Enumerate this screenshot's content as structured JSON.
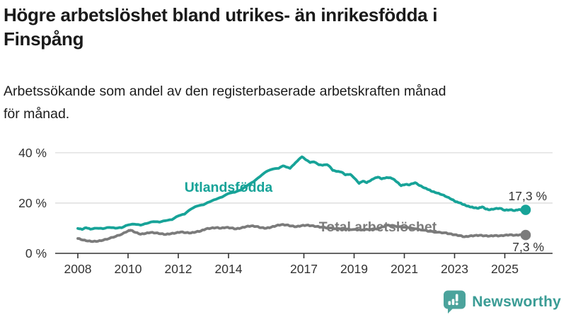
{
  "header": {
    "title_lines": [
      "Högre arbetslöshet bland utrikes- än inrikesfödda i",
      "Finspång"
    ],
    "subtitle_lines": [
      "Arbetssökande som andel av den registerbaserade arbetskraften månad",
      "för månad."
    ]
  },
  "footer": {
    "brand": "Newsworthy"
  },
  "colors": {
    "foreign_born": "#17a398",
    "total": "#7b7b7b",
    "axis_text": "#333333",
    "gridline": "#dcdcdc",
    "axis_line": "#333333",
    "brand_teal": "#3a9c95",
    "brand_icon": "#4ba39c"
  },
  "chart_data": {
    "type": "line",
    "title": "Högre arbetslöshet bland utrikes- än inrikesfödda i Finspång",
    "subtitle": "Arbetssökande som andel av den registerbaserade arbetskraften månad för månad.",
    "unit": "%",
    "xlim": [
      2007.9,
      2026.2
    ],
    "ylim": [
      0,
      42
    ],
    "grid": "horizontal",
    "x_ticks": [
      2008,
      2010,
      2012,
      2014,
      2017,
      2019,
      2021,
      2023,
      2025
    ],
    "x_tick_labels": [
      "2008",
      "2010",
      "2012",
      "2014",
      "2017",
      "2019",
      "2021",
      "2023",
      "2025"
    ],
    "y_ticks": [
      {
        "value": 0,
        "label": "0 %"
      },
      {
        "value": 20,
        "label": "20 %"
      },
      {
        "value": 40,
        "label": "40 %"
      }
    ],
    "series": [
      {
        "name": "Utlandsfödda",
        "color": "#17a398",
        "end_value": 17.3,
        "end_label": "17,3 %",
        "points": [
          [
            2008.0,
            9.9
          ],
          [
            2008.17,
            9.5
          ],
          [
            2008.33,
            10.2
          ],
          [
            2008.5,
            9.6
          ],
          [
            2008.75,
            10.0
          ],
          [
            2009.0,
            9.8
          ],
          [
            2009.25,
            10.3
          ],
          [
            2009.5,
            10.0
          ],
          [
            2009.75,
            10.2
          ],
          [
            2010.0,
            11.3
          ],
          [
            2010.25,
            11.6
          ],
          [
            2010.5,
            11.2
          ],
          [
            2010.75,
            11.9
          ],
          [
            2011.0,
            12.6
          ],
          [
            2011.25,
            12.4
          ],
          [
            2011.5,
            13.0
          ],
          [
            2011.75,
            13.4
          ],
          [
            2012.0,
            14.9
          ],
          [
            2012.25,
            15.6
          ],
          [
            2012.5,
            17.6
          ],
          [
            2012.75,
            18.8
          ],
          [
            2013.0,
            19.3
          ],
          [
            2013.25,
            20.5
          ],
          [
            2013.5,
            21.5
          ],
          [
            2013.75,
            22.4
          ],
          [
            2014.0,
            23.8
          ],
          [
            2014.25,
            24.3
          ],
          [
            2014.5,
            25.2
          ],
          [
            2014.75,
            27.0
          ],
          [
            2015.0,
            28.5
          ],
          [
            2015.25,
            30.5
          ],
          [
            2015.5,
            32.5
          ],
          [
            2015.75,
            33.5
          ],
          [
            2016.0,
            33.8
          ],
          [
            2016.17,
            34.8
          ],
          [
            2016.3,
            34.3
          ],
          [
            2016.45,
            33.8
          ],
          [
            2016.6,
            35.3
          ],
          [
            2016.75,
            36.8
          ],
          [
            2016.92,
            38.4
          ],
          [
            2017.08,
            37.2
          ],
          [
            2017.25,
            36.1
          ],
          [
            2017.4,
            36.4
          ],
          [
            2017.6,
            35.2
          ],
          [
            2017.75,
            35.0
          ],
          [
            2017.9,
            35.3
          ],
          [
            2018.0,
            34.8
          ],
          [
            2018.15,
            33.0
          ],
          [
            2018.3,
            32.6
          ],
          [
            2018.5,
            32.3
          ],
          [
            2018.65,
            31.2
          ],
          [
            2018.85,
            31.4
          ],
          [
            2019.0,
            30.0
          ],
          [
            2019.2,
            27.8
          ],
          [
            2019.35,
            28.7
          ],
          [
            2019.5,
            28.1
          ],
          [
            2019.65,
            28.9
          ],
          [
            2019.8,
            29.8
          ],
          [
            2019.95,
            30.3
          ],
          [
            2020.1,
            29.6
          ],
          [
            2020.25,
            30.0
          ],
          [
            2020.4,
            30.1
          ],
          [
            2020.55,
            29.6
          ],
          [
            2020.7,
            28.4
          ],
          [
            2020.87,
            26.9
          ],
          [
            2021.05,
            27.4
          ],
          [
            2021.2,
            27.2
          ],
          [
            2021.43,
            28.1
          ],
          [
            2021.6,
            27.0
          ],
          [
            2021.8,
            26.0
          ],
          [
            2021.97,
            25.3
          ],
          [
            2022.1,
            24.6
          ],
          [
            2022.3,
            24.0
          ],
          [
            2022.5,
            23.3
          ],
          [
            2022.7,
            22.4
          ],
          [
            2022.9,
            21.4
          ],
          [
            2023.05,
            20.5
          ],
          [
            2023.2,
            20.1
          ],
          [
            2023.35,
            19.4
          ],
          [
            2023.5,
            18.8
          ],
          [
            2023.65,
            18.4
          ],
          [
            2023.8,
            18.1
          ],
          [
            2023.95,
            17.9
          ],
          [
            2024.1,
            18.5
          ],
          [
            2024.25,
            17.6
          ],
          [
            2024.4,
            17.3
          ],
          [
            2024.6,
            17.7
          ],
          [
            2024.8,
            17.9
          ],
          [
            2025.0,
            17.1
          ],
          [
            2025.2,
            17.3
          ],
          [
            2025.4,
            17.0
          ],
          [
            2025.55,
            17.4
          ],
          [
            2025.7,
            17.1
          ],
          [
            2025.83,
            17.3
          ]
        ]
      },
      {
        "name": "Total arbetslöshet",
        "color": "#7b7b7b",
        "end_value": 7.3,
        "end_label": "7,3 %",
        "points": [
          [
            2008.0,
            5.9
          ],
          [
            2008.2,
            5.3
          ],
          [
            2008.4,
            4.9
          ],
          [
            2008.6,
            4.7
          ],
          [
            2008.8,
            4.8
          ],
          [
            2009.0,
            5.2
          ],
          [
            2009.25,
            5.9
          ],
          [
            2009.5,
            6.7
          ],
          [
            2009.75,
            7.6
          ],
          [
            2010.0,
            8.9
          ],
          [
            2010.1,
            9.2
          ],
          [
            2010.3,
            8.3
          ],
          [
            2010.5,
            7.6
          ],
          [
            2010.7,
            7.9
          ],
          [
            2010.9,
            8.3
          ],
          [
            2011.1,
            8.1
          ],
          [
            2011.3,
            7.8
          ],
          [
            2011.5,
            7.5
          ],
          [
            2011.7,
            7.8
          ],
          [
            2011.9,
            8.1
          ],
          [
            2012.1,
            8.5
          ],
          [
            2012.3,
            8.2
          ],
          [
            2012.5,
            8.1
          ],
          [
            2012.7,
            8.5
          ],
          [
            2012.9,
            8.9
          ],
          [
            2013.1,
            9.7
          ],
          [
            2013.3,
            10.0
          ],
          [
            2013.5,
            10.2
          ],
          [
            2013.7,
            10.0
          ],
          [
            2013.9,
            10.3
          ],
          [
            2014.1,
            10.1
          ],
          [
            2014.3,
            9.7
          ],
          [
            2014.5,
            10.1
          ],
          [
            2014.7,
            10.6
          ],
          [
            2014.9,
            10.9
          ],
          [
            2015.1,
            10.7
          ],
          [
            2015.3,
            10.2
          ],
          [
            2015.5,
            10.0
          ],
          [
            2015.7,
            10.4
          ],
          [
            2015.9,
            11.0
          ],
          [
            2016.1,
            11.4
          ],
          [
            2016.3,
            11.3
          ],
          [
            2016.5,
            10.9
          ],
          [
            2016.7,
            10.6
          ],
          [
            2016.9,
            11.0
          ],
          [
            2017.1,
            11.2
          ],
          [
            2017.3,
            11.0
          ],
          [
            2017.5,
            10.7
          ],
          [
            2017.7,
            10.4
          ],
          [
            2018.0,
            10.1
          ],
          [
            2018.3,
            9.8
          ],
          [
            2018.6,
            9.6
          ],
          [
            2019.0,
            9.5
          ],
          [
            2019.4,
            9.4
          ],
          [
            2019.7,
            9.6
          ],
          [
            2020.0,
            9.9
          ],
          [
            2020.3,
            11.2
          ],
          [
            2020.5,
            11.0
          ],
          [
            2020.8,
            10.6
          ],
          [
            2021.0,
            10.4
          ],
          [
            2021.4,
            9.8
          ],
          [
            2021.8,
            9.2
          ],
          [
            2022.0,
            8.8
          ],
          [
            2022.3,
            8.4
          ],
          [
            2022.6,
            8.2
          ],
          [
            2022.8,
            7.8
          ],
          [
            2023.0,
            7.4
          ],
          [
            2023.2,
            7.1
          ],
          [
            2023.4,
            6.6
          ],
          [
            2023.6,
            6.9
          ],
          [
            2023.8,
            7.1
          ],
          [
            2024.0,
            7.2
          ],
          [
            2024.2,
            7.0
          ],
          [
            2024.4,
            6.9
          ],
          [
            2024.6,
            7.1
          ],
          [
            2024.8,
            7.0
          ],
          [
            2025.0,
            7.2
          ],
          [
            2025.2,
            7.4
          ],
          [
            2025.4,
            7.2
          ],
          [
            2025.6,
            7.4
          ],
          [
            2025.83,
            7.3
          ]
        ]
      }
    ],
    "legend_position": "inline-labels"
  }
}
